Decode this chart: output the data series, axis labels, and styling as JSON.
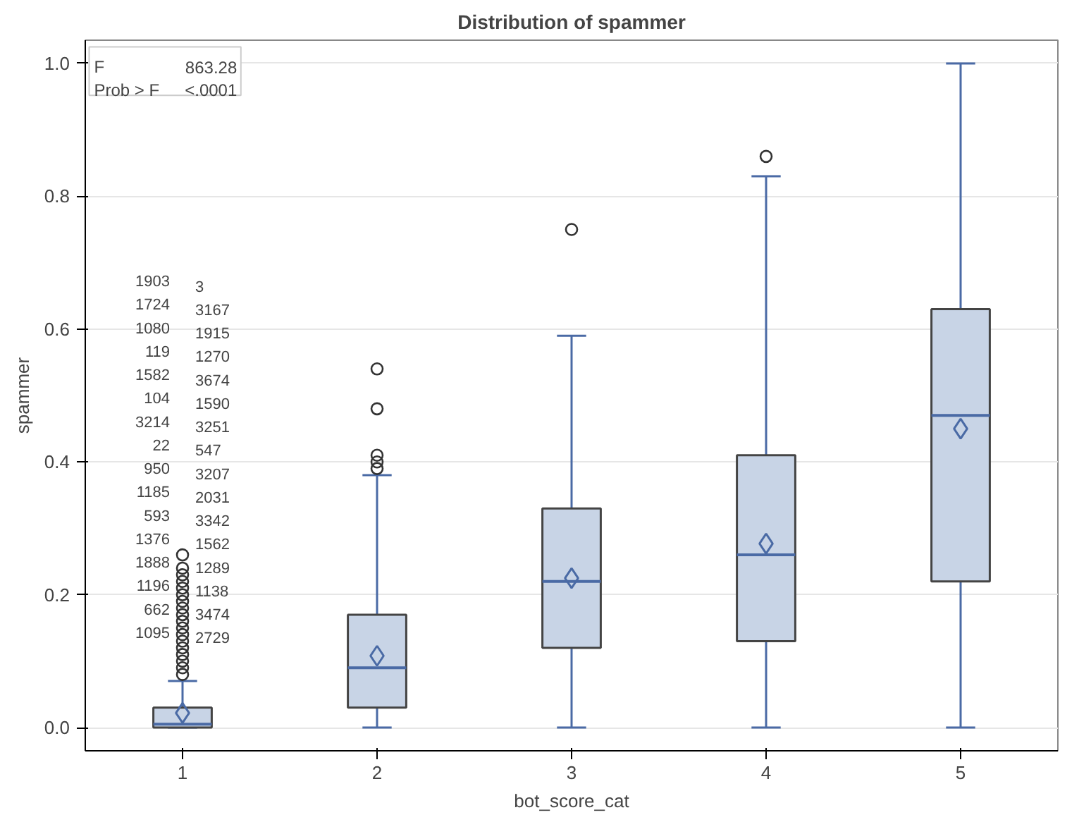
{
  "chart_data": {
    "type": "box",
    "title": "Distribution of spammer",
    "xlabel": "bot_score_cat",
    "ylabel": "spammer",
    "categories": [
      "1",
      "2",
      "3",
      "4",
      "5"
    ],
    "ylim": [
      -0.035,
      1.035
    ],
    "yticks": [
      {
        "value": 0,
        "label": "0.0"
      },
      0.2,
      0.4,
      0.6,
      0.8,
      {
        "value": 1,
        "label": "1.0"
      }
    ],
    "grid": "y",
    "series": [
      {
        "color": "#c8d4e6",
        "boxes": [
          {
            "low": 0,
            "q1": 0,
            "median": 0.005,
            "q3": 0.03,
            "high": 0.07,
            "mean": 0.022,
            "outliers": [
              0.08,
              0.09,
              0.1,
              0.11,
              0.12,
              0.13,
              0.14,
              0.15,
              0.16,
              0.17,
              0.18,
              0.19,
              0.2,
              0.21,
              0.22,
              0.23,
              0.24,
              0.26
            ]
          },
          {
            "low": 0,
            "q1": 0.03,
            "median": 0.09,
            "q3": 0.17,
            "high": 0.38,
            "mean": 0.108,
            "outliers": [
              0.39,
              0.4,
              0.41,
              0.48,
              0.54
            ]
          },
          {
            "low": 0,
            "q1": 0.12,
            "median": 0.22,
            "q3": 0.33,
            "high": 0.59,
            "mean": 0.225,
            "outliers": [
              0.75
            ]
          },
          {
            "low": 0,
            "q1": 0.13,
            "median": 0.26,
            "q3": 0.41,
            "high": 0.83,
            "mean": 0.277,
            "outliers": [
              0.86
            ]
          },
          {
            "low": 0,
            "q1": 0.22,
            "median": 0.47,
            "q3": 0.63,
            "high": 1.0,
            "mean": 0.45
          }
        ]
      }
    ],
    "annotations": [
      "F",
      "863.28",
      "Prob > F",
      "<.0001",
      "1903",
      "1724",
      "1080",
      "119",
      "1582",
      "104",
      "3214",
      "22",
      "950",
      "1185",
      "593",
      "1376",
      "1888",
      "1196",
      "662",
      "1095",
      "3",
      "3167",
      "1915",
      "1270",
      "3674",
      "1590",
      "3251",
      "547",
      "3207",
      "2031",
      "3342",
      "1562",
      "1289",
      "1138",
      "3474",
      "2729"
    ]
  }
}
